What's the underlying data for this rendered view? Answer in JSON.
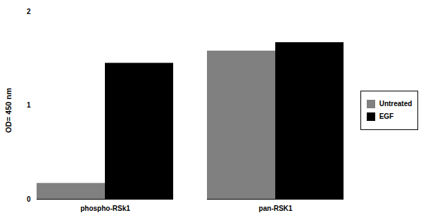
{
  "chart_data": {
    "type": "bar",
    "ylabel": "OD= 450 nm",
    "categories": [
      "phospho-RSk1",
      "pan-RSK1"
    ],
    "series": [
      {
        "name": "Untreated",
        "color": "#808080",
        "values": [
          0.17,
          1.58
        ]
      },
      {
        "name": "EGF",
        "color": "#000000",
        "values": [
          1.45,
          1.67
        ]
      }
    ],
    "ylim": [
      0,
      2.0
    ],
    "yticks": [
      0,
      1,
      2
    ],
    "grid": false,
    "legend": "right"
  }
}
